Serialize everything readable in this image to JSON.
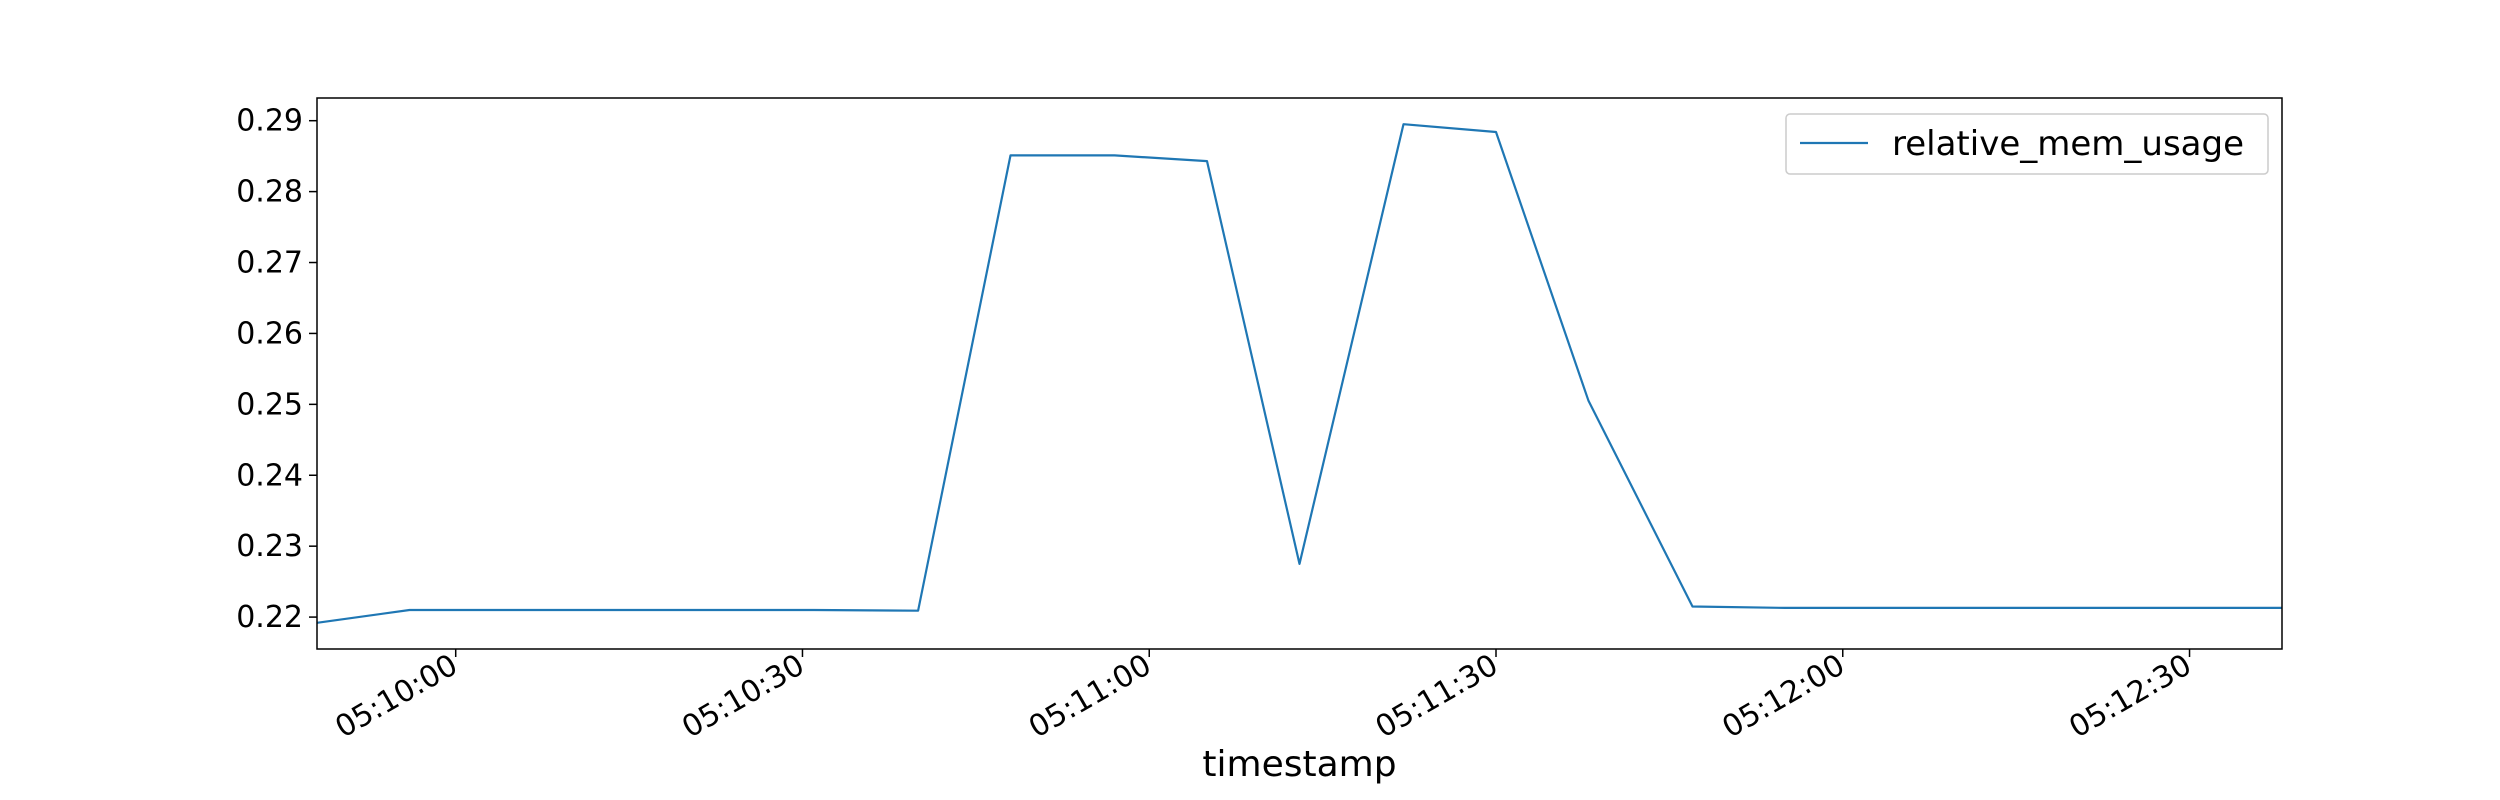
{
  "chart_data": {
    "type": "line",
    "title": "",
    "xlabel": "timestamp",
    "ylabel": "",
    "xlim": [
      "05:09:48",
      "05:12:38"
    ],
    "ylim": [
      0.2155,
      0.2932
    ],
    "x_ticks": [
      "05:10:00",
      "05:10:30",
      "05:11:00",
      "05:11:30",
      "05:12:00",
      "05:12:30"
    ],
    "y_ticks": [
      "0.22",
      "0.23",
      "0.24",
      "0.25",
      "0.26",
      "0.27",
      "0.28",
      "0.29"
    ],
    "grid": false,
    "legend_position": "top-right",
    "x": [
      "05:09:48",
      "05:09:56",
      "05:10:05",
      "05:10:14",
      "05:10:23",
      "05:10:31",
      "05:10:40",
      "05:10:48",
      "05:10:57",
      "05:11:05",
      "05:11:13",
      "05:11:22",
      "05:11:30",
      "05:11:38",
      "05:11:47",
      "05:11:55",
      "05:12:04",
      "05:12:12",
      "05:12:21",
      "05:12:29",
      "05:12:38"
    ],
    "series": [
      {
        "name": "relative_mem_usage",
        "color": "#1f77b4",
        "values": [
          0.2192,
          0.221,
          0.221,
          0.221,
          0.221,
          0.221,
          0.2209,
          0.2851,
          0.2851,
          0.2843,
          0.2275,
          0.2895,
          0.2884,
          0.2505,
          0.2215,
          0.2213,
          0.2213,
          0.2213,
          0.2213,
          0.2213,
          0.2213
        ]
      }
    ]
  }
}
